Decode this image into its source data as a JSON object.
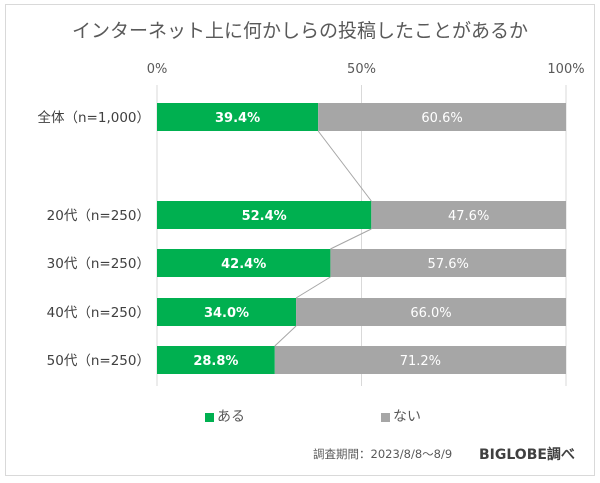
{
  "chart_data": {
    "type": "bar",
    "stacked": true,
    "orientation": "horizontal",
    "title": "インターネット上に何かしらの投稿したことがあるか",
    "categories": [
      "全体（n=1,000）",
      "20代（n=250）",
      "30代（n=250）",
      "40代（n=250）",
      "50代（n=250）"
    ],
    "series": [
      {
        "name": "ある",
        "color": "#00b050",
        "values": [
          39.4,
          52.4,
          42.4,
          34.0,
          28.8
        ],
        "labels": [
          "39.4%",
          "52.4%",
          "42.4%",
          "34.0%",
          "28.8%"
        ]
      },
      {
        "name": "ない",
        "color": "#a6a6a6",
        "values": [
          60.6,
          47.6,
          57.6,
          66.0,
          71.2
        ],
        "labels": [
          "60.6%",
          "47.6%",
          "57.6%",
          "66.0%",
          "71.2%"
        ]
      }
    ],
    "xticks": [
      "0%",
      "50%",
      "100%"
    ],
    "xlim": [
      0,
      100
    ],
    "grid": true,
    "legend": "bottom"
  },
  "footer": {
    "period": "調査期間：2023/8/8～8/9",
    "source": "BIGLOBE調べ"
  }
}
